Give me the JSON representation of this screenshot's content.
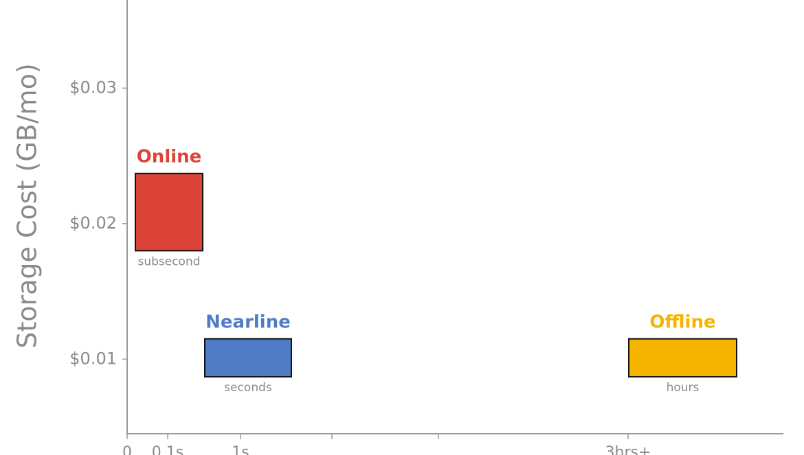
{
  "chart_data": {
    "type": "range_box",
    "y_label": "Storage Cost (GB/mo)",
    "ylim": [
      0.0045,
      0.0365
    ],
    "yticks": [
      {
        "value": 0.01,
        "label": "$0.01"
      },
      {
        "value": 0.02,
        "label": "$0.02"
      },
      {
        "value": 0.03,
        "label": "$0.03"
      }
    ],
    "categories": [
      "0",
      "0.1s",
      "1s",
      null,
      null,
      "3hrs+"
    ],
    "series": [
      {
        "name": "Online",
        "sublabel": "subsecond",
        "color": "#db4437",
        "low": 0.018,
        "high": 0.0237
      },
      {
        "name": "Nearline",
        "sublabel": "seconds",
        "color": "#4f7cc4",
        "low": 0.0087,
        "high": 0.0115
      },
      {
        "name": "Offline",
        "sublabel": "hours",
        "color": "#f4b400",
        "low": 0.0087,
        "high": 0.0115
      }
    ]
  }
}
